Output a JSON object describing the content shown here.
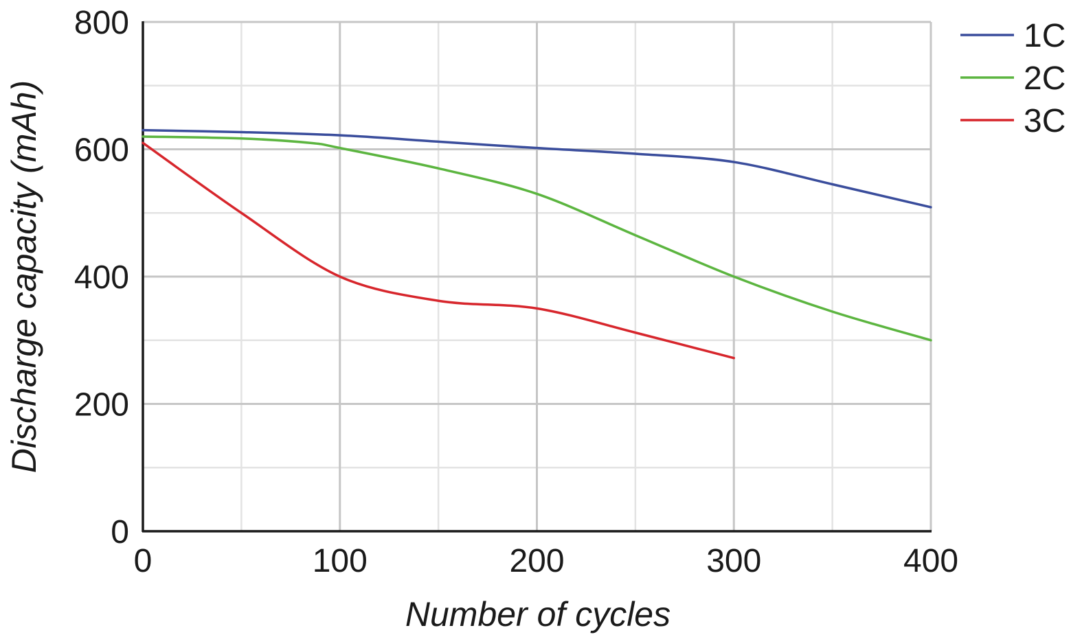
{
  "chart_data": {
    "type": "line",
    "xlabel": "Number of cycles",
    "ylabel": "Discharge capacity (mAh)",
    "xlim": [
      0,
      400
    ],
    "ylim": [
      0,
      800
    ],
    "x_ticks": [
      0,
      100,
      200,
      300,
      400
    ],
    "y_ticks": [
      0,
      200,
      400,
      600,
      800
    ],
    "x_minor_grid": [
      50,
      150,
      250,
      350
    ],
    "y_minor_grid": [
      100,
      300,
      500,
      700
    ],
    "grid": true,
    "legend_position": "top-right",
    "series": [
      {
        "name": "1C",
        "color": "#3a4d9c",
        "x": [
          0,
          50,
          100,
          150,
          200,
          250,
          300,
          350,
          400
        ],
        "y": [
          630,
          627,
          622,
          612,
          602,
          593,
          580,
          545,
          509
        ]
      },
      {
        "name": "2C",
        "color": "#5cb540",
        "x": [
          0,
          50,
          85,
          100,
          150,
          200,
          250,
          300,
          350,
          400
        ],
        "y": [
          620,
          617,
          610,
          602,
          570,
          530,
          465,
          400,
          345,
          300
        ]
      },
      {
        "name": "3C",
        "color": "#d7262c",
        "x": [
          0,
          50,
          100,
          150,
          200,
          250,
          300
        ],
        "y": [
          610,
          500,
          400,
          362,
          350,
          312,
          272
        ]
      }
    ]
  }
}
